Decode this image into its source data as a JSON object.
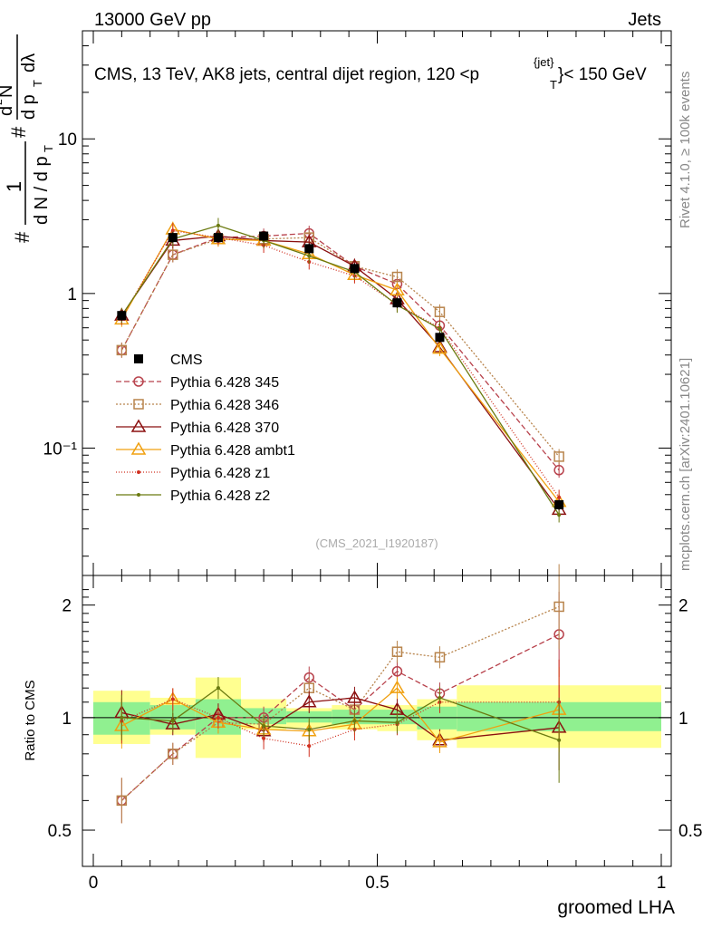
{
  "header": {
    "left": "13000 GeV pp",
    "right": "Jets"
  },
  "side_labels": {
    "rivet": "Rivet 4.1.0, ≥ 100k events",
    "mcplots": "mcplots.cern.ch [arXiv:2401.10621]"
  },
  "colors": {
    "data": "#000000",
    "p345": "#b8424c",
    "p346": "#b8844c",
    "p370": "#8b1010",
    "ambt1": "#f0a010",
    "z1": "#d03020",
    "z2": "#6b7a10",
    "band_inner": "#90f090",
    "band_outer": "#ffff90"
  },
  "chart_data": [
    {
      "type": "line",
      "panel": "main",
      "title": "CMS, 13 TeV, AK8 jets, central dijet region, 120 <p",
      "title_sup": "{jet}",
      "title_sub": "T",
      "title_end": "}< 150 GeV",
      "ylabel": "# 1/(dN/dpT) # d²N/(dpT dλ)",
      "ylabel_parts": [
        "#",
        "1",
        "d N / d p",
        "T",
        "#",
        "d",
        "2",
        "N",
        "d p",
        "T",
        "dλ"
      ],
      "yscale": "log",
      "ylim": [
        0.015,
        50
      ],
      "xlim": [
        0,
        1
      ],
      "ytick_labels": [
        "10⁻¹",
        "1",
        "10"
      ],
      "watermark": "(CMS_2021_I1920187)",
      "legend_position": "center-left",
      "x": [
        0.05,
        0.14,
        0.22,
        0.3,
        0.38,
        0.46,
        0.535,
        0.61,
        0.82
      ],
      "data": {
        "name": "CMS",
        "values": [
          0.72,
          2.3,
          2.3,
          2.35,
          1.95,
          1.45,
          0.87,
          0.52,
          0.043
        ]
      },
      "series": [
        {
          "name": "Pythia 6.428 345",
          "key": "p345",
          "marker": "circle",
          "dash": "6,3",
          "values": [
            0.43,
            1.78,
            2.3,
            2.35,
            2.45,
            1.5,
            1.15,
            0.62,
            0.072
          ]
        },
        {
          "name": "Pythia 6.428 346",
          "key": "p346",
          "marker": "square",
          "dash": "2,2",
          "values": [
            0.43,
            1.78,
            2.25,
            2.25,
            2.3,
            1.5,
            1.28,
            0.76,
            0.088
          ]
        },
        {
          "name": "Pythia 6.428 370",
          "key": "p370",
          "marker": "triangle",
          "dash": "",
          "values": [
            0.72,
            2.2,
            2.35,
            2.2,
            2.15,
            1.5,
            0.92,
            0.45,
            0.04
          ]
        },
        {
          "name": "Pythia 6.428 ambt1",
          "key": "ambt1",
          "marker": "triangle",
          "dash": "",
          "values": [
            0.68,
            2.6,
            2.25,
            2.2,
            1.8,
            1.32,
            1.05,
            0.44,
            0.045
          ]
        },
        {
          "name": "Pythia 6.428 z1",
          "key": "z1",
          "marker": "dot",
          "dash": "1,2",
          "values": [
            0.7,
            2.55,
            2.3,
            2.05,
            1.6,
            1.3,
            0.85,
            0.6,
            0.048
          ]
        },
        {
          "name": "Pythia 6.428 z2",
          "key": "z2",
          "marker": "dot",
          "dash": "",
          "values": [
            0.72,
            2.25,
            2.75,
            2.2,
            1.75,
            1.38,
            0.84,
            0.59,
            0.037
          ]
        }
      ]
    },
    {
      "type": "line",
      "panel": "ratio",
      "ylabel": "Ratio to CMS",
      "xlabel": "groomed LHA",
      "yscale": "log",
      "ylim": [
        0.4,
        2.4
      ],
      "xlim": [
        0,
        1
      ],
      "ytick_labels": [
        "0.5",
        "1",
        "2"
      ],
      "xtick_labels": [
        "0",
        "0.5",
        "1"
      ],
      "band_bins": [
        {
          "lo": 0,
          "hi": 0.1,
          "inner": [
            0.9,
            1.1
          ],
          "outer": [
            0.85,
            1.18
          ]
        },
        {
          "lo": 0.1,
          "hi": 0.18,
          "inner": [
            0.93,
            1.08
          ],
          "outer": [
            0.9,
            1.13
          ]
        },
        {
          "lo": 0.18,
          "hi": 0.26,
          "inner": [
            0.9,
            1.12
          ],
          "outer": [
            0.78,
            1.28
          ]
        },
        {
          "lo": 0.26,
          "hi": 0.34,
          "inner": [
            0.96,
            1.06
          ],
          "outer": [
            0.93,
            1.12
          ]
        },
        {
          "lo": 0.34,
          "hi": 0.42,
          "inner": [
            0.97,
            1.04
          ],
          "outer": [
            0.94,
            1.06
          ]
        },
        {
          "lo": 0.42,
          "hi": 0.5,
          "inner": [
            0.96,
            1.05
          ],
          "outer": [
            0.93,
            1.08
          ]
        },
        {
          "lo": 0.5,
          "hi": 0.57,
          "inner": [
            0.96,
            1.05
          ],
          "outer": [
            0.92,
            1.08
          ]
        },
        {
          "lo": 0.57,
          "hi": 0.64,
          "inner": [
            0.93,
            1.07
          ],
          "outer": [
            0.87,
            1.12
          ]
        },
        {
          "lo": 0.64,
          "hi": 1.0,
          "inner": [
            0.92,
            1.1
          ],
          "outer": [
            0.83,
            1.22
          ]
        }
      ],
      "series": [
        {
          "key": "p345",
          "values": [
            0.6,
            0.8,
            1.0,
            1.0,
            1.28,
            1.05,
            1.33,
            1.16,
            1.67
          ]
        },
        {
          "key": "p346",
          "values": [
            0.6,
            0.8,
            0.97,
            0.96,
            1.2,
            1.05,
            1.5,
            1.45,
            1.98
          ]
        },
        {
          "key": "p370",
          "values": [
            1.03,
            0.96,
            1.02,
            0.92,
            1.1,
            1.13,
            1.05,
            0.87,
            0.94
          ]
        },
        {
          "key": "ambt1",
          "values": [
            0.95,
            1.12,
            0.97,
            0.93,
            0.92,
            0.96,
            1.2,
            0.86,
            1.05
          ]
        },
        {
          "key": "z1",
          "values": [
            0.98,
            1.12,
            1.0,
            0.88,
            0.84,
            0.93,
            0.96,
            1.1,
            1.1
          ]
        },
        {
          "key": "z2",
          "values": [
            1.0,
            0.98,
            1.2,
            0.95,
            0.93,
            0.98,
            0.97,
            1.13,
            0.87
          ]
        }
      ]
    }
  ]
}
